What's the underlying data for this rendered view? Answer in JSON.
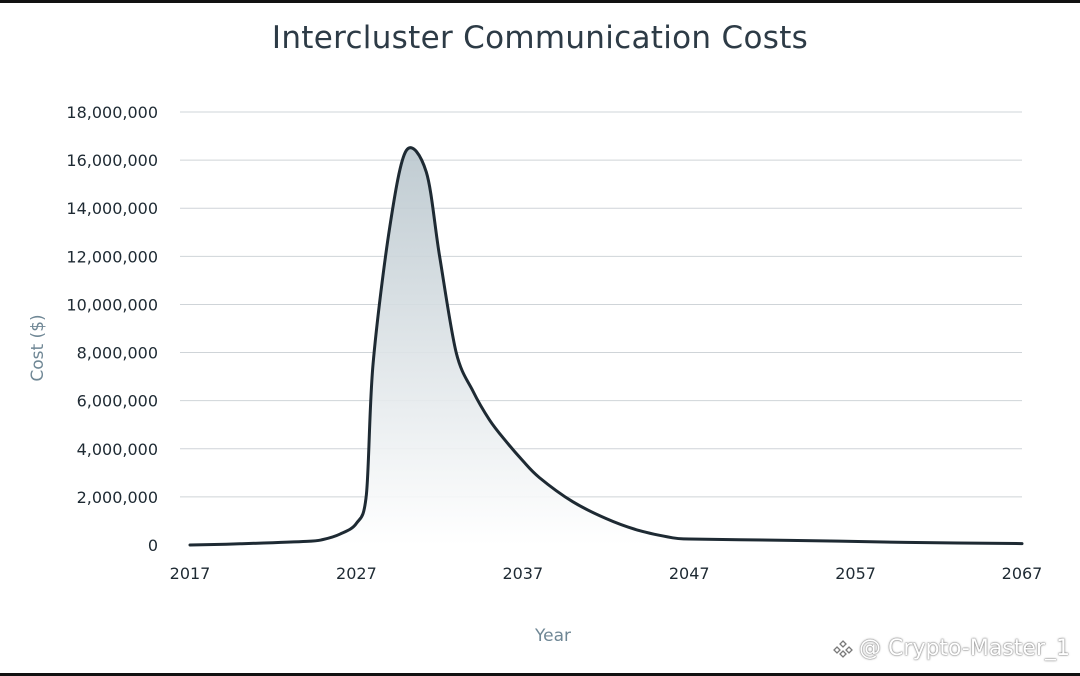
{
  "chart_data": {
    "type": "area",
    "title": "Intercluster Communication Costs",
    "xlabel": "Year",
    "ylabel": "Cost ($)",
    "xlim": [
      2017,
      2067
    ],
    "ylim": [
      0,
      18000000
    ],
    "x_ticks": [
      "2017",
      "2027",
      "2037",
      "2047",
      "2057",
      "2067"
    ],
    "y_ticks": [
      "0",
      "2,000,000",
      "4,000,000",
      "6,000,000",
      "8,000,000",
      "10,000,000",
      "12,000,000",
      "14,000,000",
      "16,000,000",
      "18,000,000"
    ],
    "grid": true,
    "legend": "none",
    "series": [
      {
        "x": [
          2017,
          2020,
          2024,
          2025,
          2026,
          2027,
          2027.6,
          2028,
          2029,
          2030,
          2031.2,
          2032,
          2033,
          2034,
          2035,
          2036,
          2037,
          2038,
          2040,
          2042,
          2044,
          2046,
          2047,
          2050,
          2055,
          2060,
          2067
        ],
        "y": [
          0,
          50000,
          150000,
          230000,
          450000,
          900000,
          2100000,
          7500000,
          13200000,
          16400000,
          15500000,
          12000000,
          8000000,
          6400000,
          5200000,
          4300000,
          3500000,
          2800000,
          1800000,
          1100000,
          600000,
          300000,
          250000,
          220000,
          170000,
          110000,
          60000
        ]
      }
    ],
    "colors": {
      "line": "#1e2a33",
      "fill_top": "#b9c6cd",
      "fill_bottom": "#ffffff",
      "grid": "#cfd4d8"
    }
  },
  "watermark": {
    "text": "@ Crypto-Master_1"
  }
}
